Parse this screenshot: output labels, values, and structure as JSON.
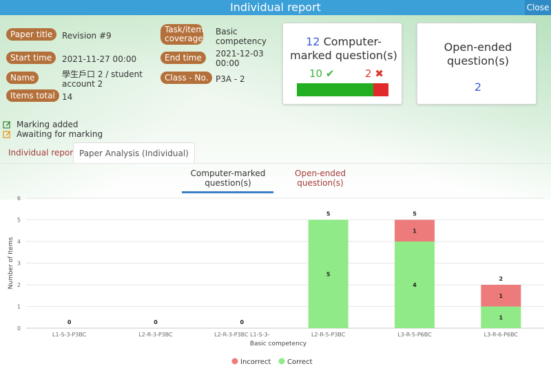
{
  "window": {
    "title": "Individual report",
    "close_label": "Close"
  },
  "info": {
    "paper_title_label": "Paper title",
    "paper_title": "Revision #9",
    "start_time_label": "Start time",
    "start_time": "2021-11-27 00:00",
    "name_label": "Name",
    "name": "學生戶口 2 / student account 2",
    "items_total_label": "Items total",
    "items_total": "14",
    "task_coverage_label": "Task/item coverage",
    "task_coverage": "Basic competency",
    "end_time_label": "End time",
    "end_time": "2021-12-03 00:00",
    "class_no_label": "Class - No.",
    "class_no": "P3A - 2"
  },
  "computer_card": {
    "count": "12",
    "title": "Computer-marked question(s)",
    "correct": "10",
    "correct_icon": "check-icon",
    "incorrect": "2",
    "incorrect_icon": "cross-icon",
    "correct_fraction": 0.8333,
    "colors": {
      "correct": "#22b022",
      "incorrect": "#e12b2b"
    }
  },
  "open_card": {
    "title": "Open-ended question(s)",
    "count": "2"
  },
  "legend": {
    "marking_added": "Marking added",
    "awaiting": "Awaiting for marking"
  },
  "tabs": [
    {
      "label": "Individual report"
    },
    {
      "label": "Paper Analysis (Individual)"
    }
  ],
  "subtabs": [
    {
      "label": "Computer-marked question(s)"
    },
    {
      "label": "Open-ended question(s)"
    }
  ],
  "chart_data": {
    "type": "bar",
    "stacked": true,
    "categories": [
      "L1-S-3-P3BC",
      "L2-R-3-P3BC",
      "L2-R-3-P3BC L1-S-3-",
      "L2-R-5-P3BC",
      "L3-R-5-P6BC",
      "L3-R-6-P6BC"
    ],
    "series": [
      {
        "name": "Correct",
        "values": [
          0,
          0,
          0,
          5,
          4,
          1
        ],
        "color": "#90ea88"
      },
      {
        "name": "Incorrect",
        "values": [
          0,
          0,
          0,
          0,
          1,
          1
        ],
        "color": "#ee7b7b"
      }
    ],
    "totals": [
      0,
      0,
      0,
      5,
      5,
      2
    ],
    "xlabel": "Basic competency",
    "ylabel": "Number of Items",
    "ylim": [
      0,
      6
    ],
    "yticks": [
      0,
      1,
      2,
      3,
      4,
      5,
      6
    ],
    "grid": true,
    "legend_position": "bottom"
  }
}
